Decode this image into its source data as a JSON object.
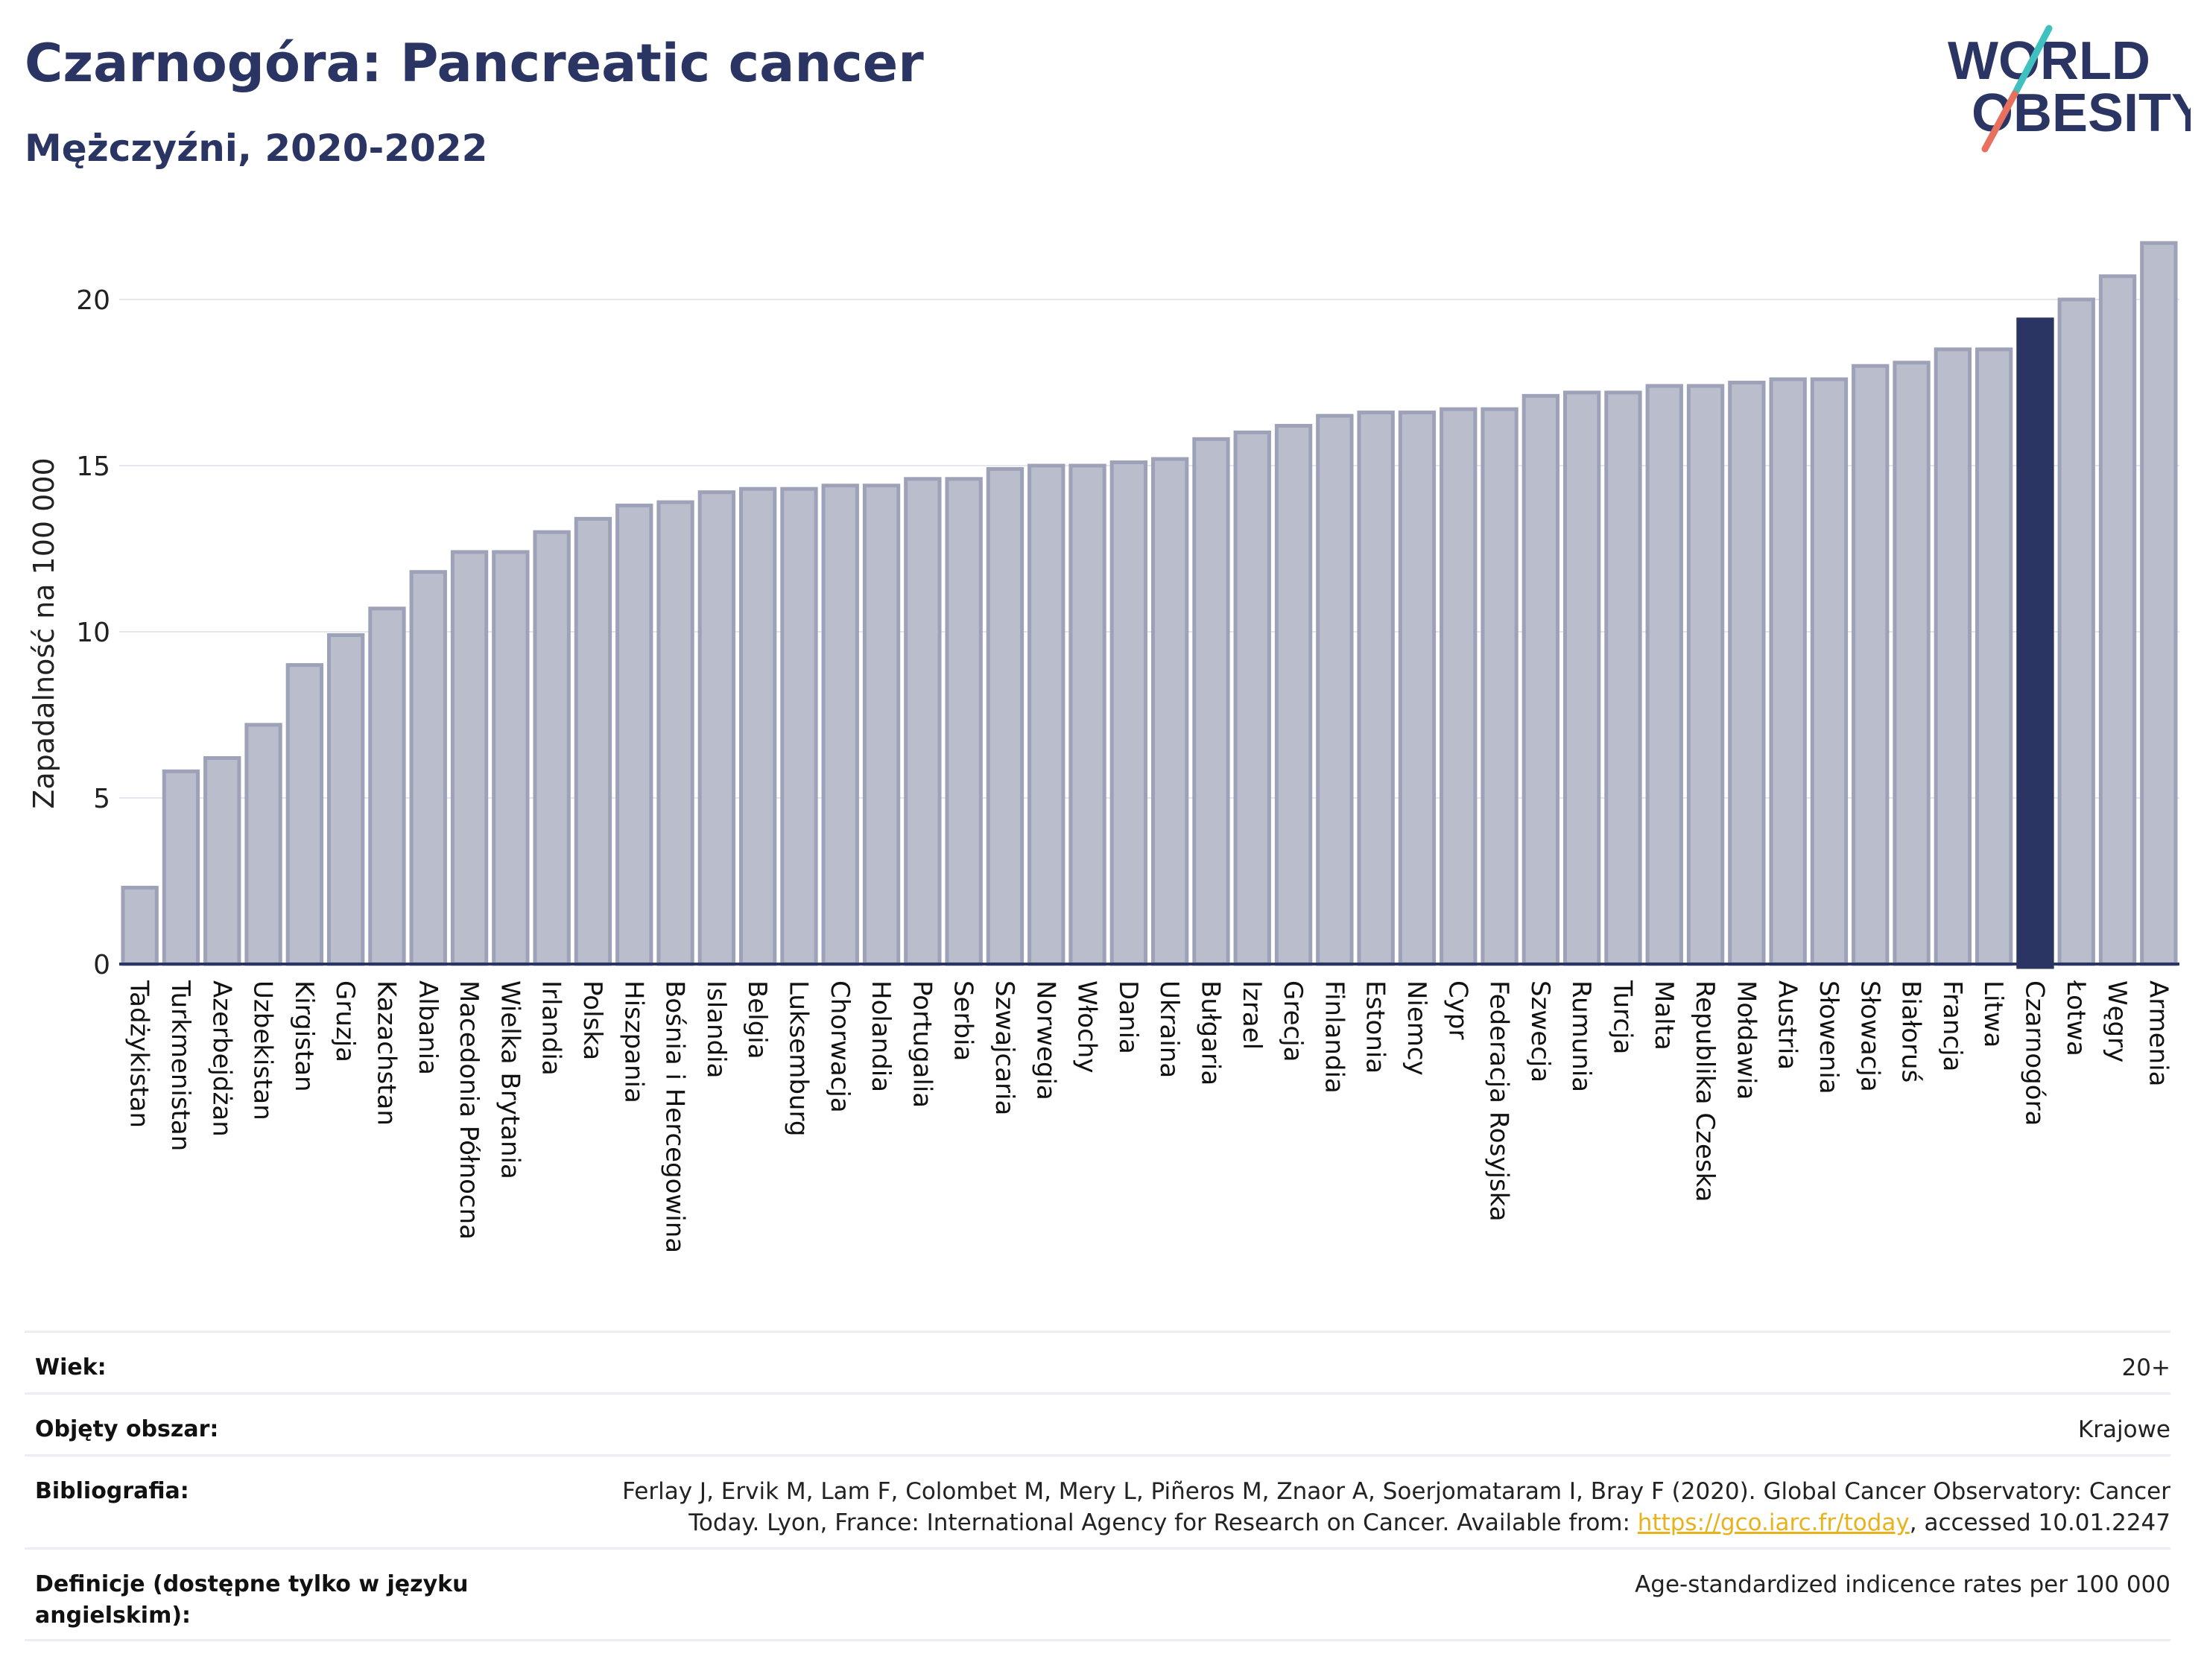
{
  "header": {
    "title": "Czarnogóra: Pancreatic cancer",
    "subtitle": "Mężczyźni, 2020-2022"
  },
  "logo": {
    "line1": "WORLD",
    "line2": "OBESITY",
    "accent_teal": "#3fc1c0",
    "accent_coral": "#e8705f"
  },
  "colors": {
    "bar": "#b9bdcc",
    "bar_border": "#9da2b8",
    "highlight": "#2b3563",
    "axis": "#2b3563",
    "grid": "#e6e7ee"
  },
  "chart_data": {
    "type": "bar",
    "ylabel": "Zapadalność na 100 000",
    "ylim": [
      0,
      22
    ],
    "yticks": [
      0,
      5,
      10,
      15,
      20
    ],
    "highlight": "Czarnogóra",
    "grid": true,
    "categories": [
      "Tadżykistan",
      "Turkmenistan",
      "Azerbejdżan",
      "Uzbekistan",
      "Kirgistan",
      "Gruzja",
      "Kazachstan",
      "Albania",
      "Macedonia Północna",
      "Wielka Brytania",
      "Irlandia",
      "Polska",
      "Hiszpania",
      "Bośnia i Hercegowina",
      "Islandia",
      "Belgia",
      "Luksemburg",
      "Chorwacja",
      "Holandia",
      "Portugalia",
      "Serbia",
      "Szwajcaria",
      "Norwegia",
      "Włochy",
      "Dania",
      "Ukraina",
      "Bułgaria",
      "Izrael",
      "Grecja",
      "Finlandia",
      "Estonia",
      "Niemcy",
      "Cypr",
      "Federacja Rosyjska",
      "Szwecja",
      "Rumunia",
      "Turcja",
      "Malta",
      "Republika Czeska",
      "Mołdawia",
      "Austria",
      "Słowenia",
      "Słowacja",
      "Białoruś",
      "Francja",
      "Litwa",
      "Czarnogóra",
      "Łotwa",
      "Węgry",
      "Armenia"
    ],
    "values": [
      2.3,
      5.8,
      6.2,
      7.2,
      9.0,
      9.9,
      10.7,
      11.8,
      12.4,
      12.4,
      13.0,
      13.4,
      13.8,
      13.9,
      14.2,
      14.3,
      14.3,
      14.4,
      14.4,
      14.6,
      14.6,
      14.9,
      15.0,
      15.0,
      15.1,
      15.2,
      15.8,
      16.0,
      16.2,
      16.5,
      16.6,
      16.6,
      16.7,
      16.7,
      17.1,
      17.2,
      17.2,
      17.4,
      17.4,
      17.5,
      17.6,
      17.6,
      18.0,
      18.1,
      18.5,
      18.5,
      19.4,
      20.0,
      20.7,
      21.7
    ]
  },
  "info": {
    "rows": [
      {
        "label": "Wiek:",
        "value": "20+"
      },
      {
        "label": "Objęty obszar:",
        "value": "Krajowe"
      },
      {
        "label": "Bibliografia:",
        "value_line1": "Ferlay J, Ervik M, Lam F, Colombet M, Mery L, Piñeros M, Znaor A, Soerjomataram I, Bray F (2020). Global Cancer Observatory: Cancer",
        "value_line2_pre": "Today. Lyon, France: International Agency for Research on Cancer. Available from: ",
        "link": "https://gco.iarc.fr/today",
        "value_line2_post": ", accessed 10.01.2247"
      },
      {
        "label": "Definicje (dostępne tylko w języku angielskim):",
        "value": "Age-standardized indicence rates per 100 000"
      }
    ]
  }
}
